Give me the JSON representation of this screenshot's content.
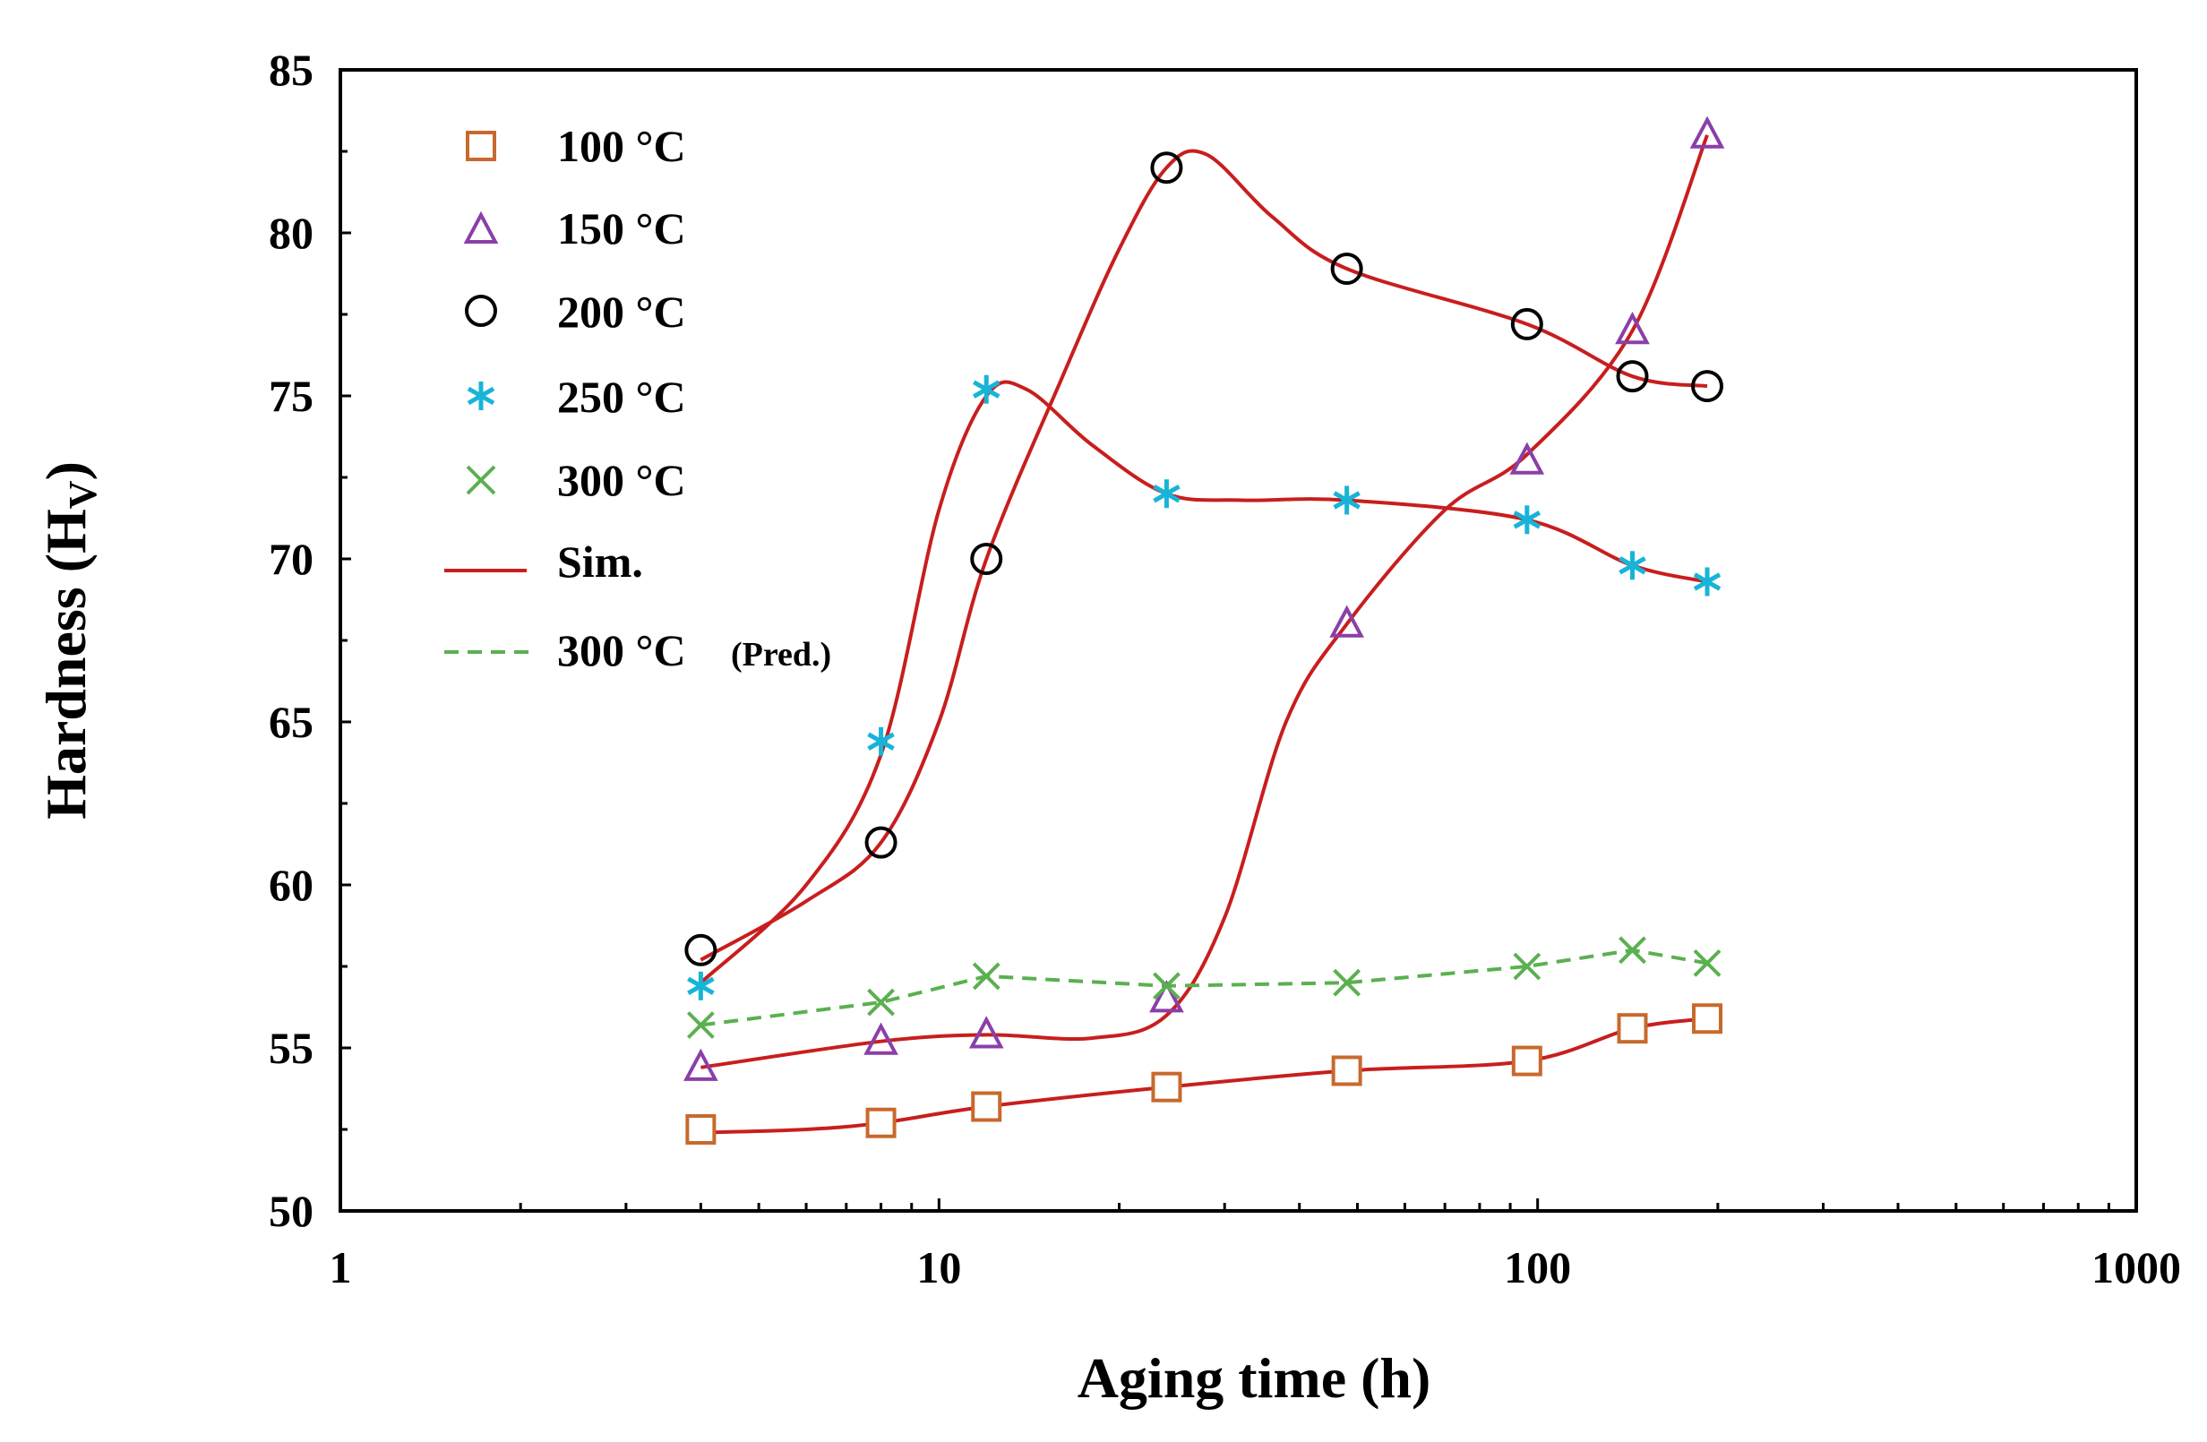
{
  "chart_data": {
    "type": "scatter",
    "xscale": "log",
    "xlabel": "Aging time (h)",
    "ylabel_main": "Hardness (H",
    "ylabel_sub": "V",
    "ylabel_close": ")",
    "xlim": [
      1,
      1000
    ],
    "ylim": [
      50,
      85
    ],
    "xticks": [
      1,
      10,
      100,
      1000
    ],
    "xtick_labels": [
      "1",
      "10",
      "100",
      "1000"
    ],
    "yticks": [
      50,
      55,
      60,
      65,
      70,
      75,
      80,
      85
    ],
    "ytick_labels": [
      "50",
      "55",
      "60",
      "65",
      "70",
      "75",
      "80",
      "85"
    ],
    "legend_position": "top-left",
    "series": [
      {
        "name": "100 °C",
        "marker": "square",
        "color": "#c8692c",
        "x": [
          4,
          8,
          12,
          24,
          48,
          96,
          144,
          192
        ],
        "y": [
          52.5,
          52.7,
          53.2,
          53.8,
          54.3,
          54.6,
          55.6,
          55.9
        ]
      },
      {
        "name": "150 °C",
        "marker": "triangle",
        "color": "#8a3fa8",
        "x": [
          4,
          8,
          12,
          24,
          48,
          96,
          144,
          192
        ],
        "y": [
          54.4,
          55.2,
          55.4,
          56.5,
          68.0,
          73.0,
          77.0,
          83.0
        ]
      },
      {
        "name": "200 °C",
        "marker": "circle",
        "color": "#000000",
        "x": [
          4,
          8,
          12,
          24,
          48,
          96,
          144,
          192
        ],
        "y": [
          58.0,
          61.3,
          70.0,
          82.0,
          78.9,
          77.2,
          75.6,
          75.3
        ]
      },
      {
        "name": "250 °C",
        "marker": "asterisk",
        "color": "#18b4d8",
        "x": [
          4,
          8,
          12,
          24,
          48,
          96,
          144,
          192
        ],
        "y": [
          56.9,
          64.4,
          75.2,
          72.0,
          71.8,
          71.2,
          69.8,
          69.3
        ]
      },
      {
        "name": "300 °C",
        "marker": "x",
        "color": "#5bb050",
        "x": [
          4,
          8,
          12,
          24,
          48,
          96,
          144,
          192
        ],
        "y": [
          55.7,
          56.4,
          57.2,
          56.9,
          57.0,
          57.5,
          58.0,
          57.6
        ]
      }
    ],
    "sim_curves": [
      {
        "name": "Sim.",
        "style": "solid",
        "color": "#c81e1e",
        "points": [
          [
            4,
            52.4
          ],
          [
            6,
            52.5
          ],
          [
            8,
            52.7
          ],
          [
            12,
            53.2
          ],
          [
            24,
            53.8
          ],
          [
            48,
            54.3
          ],
          [
            96,
            54.6
          ],
          [
            144,
            55.6
          ],
          [
            192,
            55.9
          ]
        ]
      },
      {
        "name": "Sim.",
        "style": "solid",
        "color": "#c81e1e",
        "points": [
          [
            4,
            54.4
          ],
          [
            8,
            55.2
          ],
          [
            12,
            55.4
          ],
          [
            18,
            55.3
          ],
          [
            24,
            56.0
          ],
          [
            30,
            59.0
          ],
          [
            38,
            65.0
          ],
          [
            48,
            68.0
          ],
          [
            70,
            71.5
          ],
          [
            96,
            73.2
          ],
          [
            144,
            77.0
          ],
          [
            192,
            83.0
          ]
        ]
      },
      {
        "name": "Sim.",
        "style": "solid",
        "color": "#c81e1e",
        "points": [
          [
            4,
            57.7
          ],
          [
            6,
            59.5
          ],
          [
            8,
            61.3
          ],
          [
            10,
            65.0
          ],
          [
            12,
            70.0
          ],
          [
            16,
            75.5
          ],
          [
            20,
            79.5
          ],
          [
            24,
            82.0
          ],
          [
            28,
            82.4
          ],
          [
            36,
            80.5
          ],
          [
            48,
            78.9
          ],
          [
            96,
            77.2
          ],
          [
            144,
            75.6
          ],
          [
            192,
            75.3
          ]
        ]
      },
      {
        "name": "Sim.",
        "style": "solid",
        "color": "#c81e1e",
        "points": [
          [
            4,
            57.0
          ],
          [
            6,
            60.0
          ],
          [
            8,
            64.0
          ],
          [
            10,
            71.5
          ],
          [
            12,
            75.0
          ],
          [
            14,
            75.2
          ],
          [
            18,
            73.5
          ],
          [
            24,
            72.0
          ],
          [
            32,
            71.8
          ],
          [
            48,
            71.8
          ],
          [
            96,
            71.2
          ],
          [
            144,
            69.8
          ],
          [
            192,
            69.3
          ]
        ]
      }
    ],
    "pred_curve": {
      "name": "300 °C",
      "name_suffix": "(Pred.)",
      "style": "dashed",
      "color": "#5bb050",
      "points": [
        [
          4,
          55.7
        ],
        [
          8,
          56.4
        ],
        [
          12,
          57.2
        ],
        [
          24,
          56.9
        ],
        [
          48,
          57.0
        ],
        [
          96,
          57.5
        ],
        [
          144,
          58.0
        ],
        [
          192,
          57.6
        ]
      ]
    }
  }
}
